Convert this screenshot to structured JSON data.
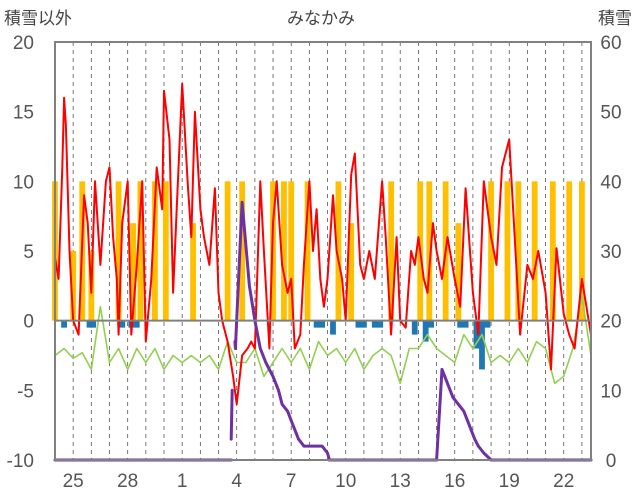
{
  "chart_data": {
    "type": "line",
    "title": "みなかみ",
    "left_axis_label": "積雪以外",
    "right_axis_label": "積雪",
    "left_ylim": [
      -10,
      20
    ],
    "left_yticks": [
      "20",
      "15",
      "10",
      "5",
      "0",
      "-5",
      "-10"
    ],
    "right_ylim": [
      0,
      60
    ],
    "right_yticks": [
      "60",
      "50",
      "40",
      "30",
      "20",
      "10",
      "0"
    ],
    "x_ticks": [
      "25",
      "28",
      "1",
      "4",
      "7",
      "10",
      "13",
      "16",
      "19",
      "22"
    ],
    "x_tick_days": [
      1,
      4,
      7,
      10,
      13,
      16,
      19,
      22,
      25,
      28
    ],
    "x_range_days": [
      0,
      29.5
    ],
    "grid": "vertical-dashed-daily",
    "series": [
      {
        "name": "気温",
        "color": "#ff0000",
        "axis": "left",
        "x": [
          0,
          0.2,
          0.4,
          0.5,
          0.6,
          0.8,
          1.0,
          1.3,
          1.6,
          1.8,
          2.0,
          2.2,
          2.5,
          2.8,
          3.0,
          3.2,
          3.4,
          3.5,
          3.7,
          4.0,
          4.2,
          4.5,
          4.8,
          5.0,
          5.3,
          5.6,
          5.9,
          6.0,
          6.3,
          6.5,
          6.7,
          7.0,
          7.3,
          7.5,
          7.7,
          8.0,
          8.2,
          8.5,
          8.8,
          9.0,
          9.2,
          9.5,
          9.8,
          10.0,
          10.3,
          10.6,
          10.8,
          11.0,
          11.3,
          11.5,
          11.8,
          12.0,
          12.2,
          12.5,
          12.8,
          13.0,
          13.2,
          13.5,
          13.7,
          14.0,
          14.2,
          14.4,
          14.6,
          14.8,
          15.0,
          15.3,
          15.5,
          15.8,
          16.0,
          16.3,
          16.5,
          16.8,
          17.0,
          17.3,
          17.6,
          18.0,
          18.2,
          18.5,
          18.8,
          19.0,
          19.3,
          19.6,
          19.8,
          20.0,
          20.3,
          20.5,
          20.8,
          21.0,
          21.3,
          21.6,
          22.0,
          22.3,
          22.6,
          23.0,
          23.3,
          23.6,
          24.0,
          24.3,
          24.6,
          25.0,
          25.3,
          25.6,
          26.0,
          26.3,
          26.6,
          27.0,
          27.3,
          27.6,
          28.0,
          28.3,
          28.6,
          29.0,
          29.5
        ],
        "values": [
          4.5,
          3,
          11,
          16,
          14,
          5,
          0,
          -1,
          9,
          7,
          2,
          10,
          4,
          10,
          11,
          6,
          3,
          -1,
          7,
          10,
          -1,
          4,
          10,
          -1.5,
          3,
          11,
          8,
          16.5,
          13,
          2,
          8,
          17,
          10,
          6,
          15,
          8,
          6,
          4,
          9.5,
          2,
          0,
          -1.5,
          -4,
          -6,
          -2.5,
          -2,
          -1.5,
          -2,
          10,
          5,
          -2,
          7,
          10,
          4,
          2,
          3,
          -2,
          -1,
          4,
          10,
          5,
          8,
          3,
          1,
          3,
          9,
          5,
          3,
          0,
          10.5,
          12,
          4,
          3,
          5,
          3,
          10,
          6,
          -1,
          6,
          0,
          -0.5,
          5,
          4,
          6,
          3,
          2,
          7,
          5,
          3,
          6,
          3,
          1,
          9.5,
          2,
          -1,
          10,
          6,
          4,
          11,
          13,
          6,
          -1,
          4,
          3,
          5,
          2,
          -3.5,
          5.2,
          0.5,
          -1,
          -2,
          3,
          -1
        ],
        "extra_points": {
          "x": [
            0.5,
            0.45,
            0.55,
            2.6,
            5.6,
            8.1,
            8.9,
            11.6,
            15.6,
            19.1,
            21.1,
            24.2,
            25.0
          ],
          "values": [
            3,
            16,
            14,
            9.5,
            11,
            16,
            15,
            11.8,
            5.5,
            11,
            8,
            10,
            13
          ]
        }
      },
      {
        "name": "湿度系",
        "color": "#92d050",
        "axis": "left",
        "x": [
          0,
          0.5,
          1.0,
          1.5,
          2.0,
          2.5,
          3.0,
          3.5,
          4.0,
          4.5,
          5.0,
          5.5,
          6.0,
          6.5,
          7.0,
          7.5,
          8.0,
          8.5,
          9.0,
          9.5,
          10.0,
          10.5,
          11.0,
          11.5,
          12.0,
          12.5,
          13.0,
          13.5,
          14.0,
          14.5,
          15.0,
          15.5,
          16.0,
          16.5,
          17.0,
          17.5,
          18.0,
          18.5,
          19.0,
          19.5,
          20.0,
          20.5,
          21.0,
          21.5,
          22.0,
          22.5,
          23.0,
          23.5,
          24.0,
          24.5,
          25.0,
          25.5,
          26.0,
          26.5,
          27.0,
          27.5,
          28.0,
          28.5,
          29.0,
          29.5
        ],
        "values": [
          -2.5,
          -2,
          -2.7,
          -2.3,
          -3.5,
          1,
          -3,
          -2,
          -3.5,
          -2,
          -3,
          -2,
          -3.5,
          -2.5,
          -3,
          -2.5,
          -3,
          -2.5,
          -3.5,
          -1.5,
          -3,
          -3,
          -2,
          -4,
          -3,
          -2,
          -3,
          -2,
          -3.5,
          -1.5,
          -2.5,
          -2,
          -3,
          -2,
          -3.5,
          -2.5,
          -2,
          -2.5,
          -4.5,
          -2,
          -2,
          -1,
          -2,
          -2.5,
          -3,
          -1,
          -2,
          -1,
          -3,
          -2.5,
          -3,
          -2,
          -3,
          -1.5,
          -2,
          -4.5,
          -4,
          -2,
          1.8,
          -2.5
        ]
      },
      {
        "name": "日照",
        "color": "#ffc000",
        "type": "bar",
        "axis": "left",
        "bars": [
          {
            "x": 0.0,
            "value": 10
          },
          {
            "x": 1.0,
            "value": 5
          },
          {
            "x": 1.5,
            "value": 10
          },
          {
            "x": 2.0,
            "value": 5
          },
          {
            "x": 3.5,
            "value": 10
          },
          {
            "x": 4.3,
            "value": 7
          },
          {
            "x": 4.7,
            "value": 10
          },
          {
            "x": 5.5,
            "value": 10
          },
          {
            "x": 6.1,
            "value": 10
          },
          {
            "x": 7.6,
            "value": 7
          },
          {
            "x": 9.5,
            "value": 10
          },
          {
            "x": 10.3,
            "value": 10
          },
          {
            "x": 12.0,
            "value": 10
          },
          {
            "x": 12.6,
            "value": 10
          },
          {
            "x": 13.0,
            "value": 10
          },
          {
            "x": 13.9,
            "value": 10
          },
          {
            "x": 15.6,
            "value": 10
          },
          {
            "x": 16.3,
            "value": 7
          },
          {
            "x": 18.5,
            "value": 10
          },
          {
            "x": 20.1,
            "value": 10
          },
          {
            "x": 20.6,
            "value": 10
          },
          {
            "x": 21.5,
            "value": 10
          },
          {
            "x": 22.2,
            "value": 7
          },
          {
            "x": 24.0,
            "value": 10
          },
          {
            "x": 24.9,
            "value": 10
          },
          {
            "x": 25.5,
            "value": 10
          },
          {
            "x": 26.4,
            "value": 10
          },
          {
            "x": 27.4,
            "value": 10
          },
          {
            "x": 28.3,
            "value": 10
          },
          {
            "x": 29.0,
            "value": 10
          }
        ]
      },
      {
        "name": "降水",
        "color": "#1f77b4",
        "type": "bar",
        "axis": "left",
        "bars": [
          {
            "x": 0.5,
            "value": -0.5
          },
          {
            "x": 1.9,
            "value": -0.5
          },
          {
            "x": 2.1,
            "value": -0.5
          },
          {
            "x": 3.7,
            "value": -0.5
          },
          {
            "x": 4.2,
            "value": -0.5
          },
          {
            "x": 4.5,
            "value": -0.5
          },
          {
            "x": 14.4,
            "value": -0.5
          },
          {
            "x": 14.7,
            "value": -0.5
          },
          {
            "x": 15.3,
            "value": -1
          },
          {
            "x": 16.7,
            "value": -0.5
          },
          {
            "x": 17.0,
            "value": -0.5
          },
          {
            "x": 17.6,
            "value": -0.5
          },
          {
            "x": 17.9,
            "value": -0.5
          },
          {
            "x": 19.8,
            "value": -1
          },
          {
            "x": 20.4,
            "value": -1.5
          },
          {
            "x": 20.7,
            "value": -0.5
          },
          {
            "x": 22.3,
            "value": -0.5
          },
          {
            "x": 22.6,
            "value": -0.5
          },
          {
            "x": 23.2,
            "value": -2
          },
          {
            "x": 23.5,
            "value": -3.5
          },
          {
            "x": 23.8,
            "value": -0.5
          }
        ]
      },
      {
        "name": "積雪",
        "color": "#7030a0",
        "axis": "right",
        "segments": [
          {
            "x": [
              0,
              9.7
            ],
            "values": [
              0,
              0
            ]
          },
          {
            "x": [
              9.7,
              9.75
            ],
            "values": [
              3,
              10
            ]
          },
          {
            "x": [
              9.9,
              9.93,
              10.3,
              10.7,
              11.0,
              11.3,
              11.6,
              12.0,
              12.3,
              12.5,
              12.8,
              13.1,
              13.4,
              13.7,
              14.0,
              14.3,
              14.7,
              15.0,
              15.1
            ],
            "values": [
              17,
              16,
              37,
              25,
              20,
              16,
              14,
              12,
              10,
              8,
              7,
              5,
              3,
              2,
              2,
              2,
              2,
              1,
              0
            ]
          },
          {
            "x": [
              15.1,
              20.9
            ],
            "values": [
              0,
              0
            ]
          },
          {
            "x": [
              20.9,
              21.0,
              21.3,
              21.6,
              21.9,
              22.2,
              22.5,
              22.8,
              23.1,
              23.3,
              23.6,
              24.0
            ],
            "values": [
              0,
              0,
              13,
              11,
              9,
              8,
              7,
              5,
              3,
              2,
              1,
              0
            ]
          },
          {
            "x": [
              24.0,
              29.5
            ],
            "values": [
              0,
              0
            ]
          }
        ]
      }
    ]
  }
}
